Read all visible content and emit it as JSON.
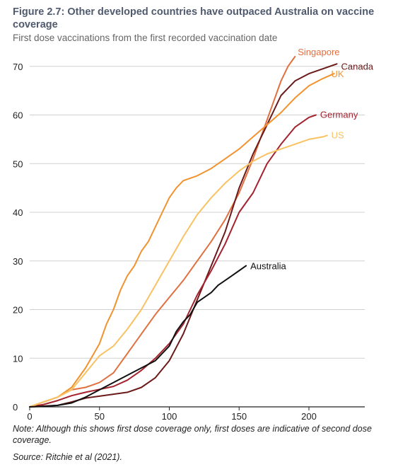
{
  "title": "Figure 2.7: Other developed countries have outpaced Australia on vaccine coverage",
  "subtitle": "First dose vaccinations from the first recorded vaccination date",
  "note": "Note: Although this shows first dose coverage only, first doses are indicative of second dose coverage.",
  "source": "Source: Ritchie et al (2021).",
  "chart_data": {
    "type": "line",
    "xlim": [
      0,
      240
    ],
    "ylim": [
      0,
      72
    ],
    "xticks": [
      0,
      50,
      100,
      150,
      200
    ],
    "yticks": [
      0,
      10,
      20,
      30,
      40,
      50,
      60,
      70
    ],
    "grid": "horizontal",
    "legend": "direct labels at line ends",
    "series": [
      {
        "name": "Singapore",
        "color": "#e07040",
        "x": [
          0,
          10,
          20,
          30,
          40,
          50,
          60,
          70,
          80,
          90,
          100,
          110,
          120,
          130,
          140,
          150,
          160,
          170,
          175,
          180,
          185,
          190
        ],
        "y": [
          0,
          1,
          2,
          3.5,
          4,
          5,
          7,
          11,
          15,
          19,
          22.5,
          26,
          30,
          34,
          38.5,
          44,
          51,
          59,
          63,
          67,
          70,
          72
        ]
      },
      {
        "name": "Canada",
        "color": "#6b1a1a",
        "x": [
          0,
          20,
          30,
          40,
          50,
          60,
          70,
          80,
          90,
          100,
          110,
          120,
          130,
          140,
          150,
          160,
          170,
          180,
          190,
          200,
          210,
          220
        ],
        "y": [
          0,
          0.3,
          1,
          1.8,
          2.2,
          2.6,
          3,
          4,
          6,
          9.5,
          15,
          22,
          29,
          36,
          45,
          52,
          58,
          64,
          67,
          68.5,
          69.5,
          70.5
        ]
      },
      {
        "name": "UK",
        "color": "#f2922e",
        "x": [
          0,
          10,
          20,
          30,
          40,
          50,
          55,
          60,
          65,
          70,
          75,
          80,
          85,
          90,
          95,
          100,
          105,
          110,
          120,
          130,
          140,
          150,
          160,
          170,
          180,
          190,
          200,
          210,
          218
        ],
        "y": [
          0,
          1,
          2,
          4,
          8,
          13,
          17,
          20,
          24,
          27,
          29,
          32,
          34,
          37,
          40,
          43,
          45,
          46.5,
          47.5,
          49,
          51,
          53,
          55.5,
          58,
          60.5,
          63.5,
          66,
          67.5,
          68.5
        ]
      },
      {
        "name": "Germany",
        "color": "#a3222e",
        "x": [
          0,
          10,
          20,
          30,
          40,
          50,
          60,
          70,
          80,
          90,
          100,
          110,
          120,
          130,
          140,
          150,
          160,
          170,
          180,
          190,
          200,
          205
        ],
        "y": [
          0,
          0.5,
          1.3,
          2.3,
          3,
          3.6,
          4.2,
          5.5,
          7.5,
          10,
          13,
          17,
          23,
          28,
          33.5,
          40,
          44,
          50,
          54,
          57.5,
          59.5,
          60
        ]
      },
      {
        "name": "US",
        "color": "#f8c262",
        "x": [
          0,
          10,
          20,
          30,
          40,
          50,
          60,
          70,
          80,
          90,
          100,
          110,
          120,
          130,
          140,
          150,
          160,
          170,
          180,
          190,
          200,
          210,
          213
        ],
        "y": [
          0,
          1,
          2,
          3.5,
          7,
          10.5,
          12.5,
          16,
          20,
          25,
          30,
          35,
          39.5,
          43,
          46,
          48.5,
          50.5,
          52,
          53,
          54,
          55,
          55.5,
          55.8
        ]
      },
      {
        "name": "Australia",
        "color": "#111111",
        "x": [
          0,
          10,
          20,
          30,
          40,
          50,
          60,
          70,
          80,
          90,
          100,
          105,
          110,
          115,
          120,
          125,
          130,
          135,
          140,
          145,
          150,
          155
        ],
        "y": [
          0,
          0.1,
          0.3,
          0.8,
          2,
          3.5,
          5,
          6.5,
          8,
          9.5,
          12.5,
          15.5,
          17.5,
          19,
          21.5,
          22.5,
          23.5,
          25,
          26,
          27,
          28,
          29
        ]
      }
    ]
  }
}
